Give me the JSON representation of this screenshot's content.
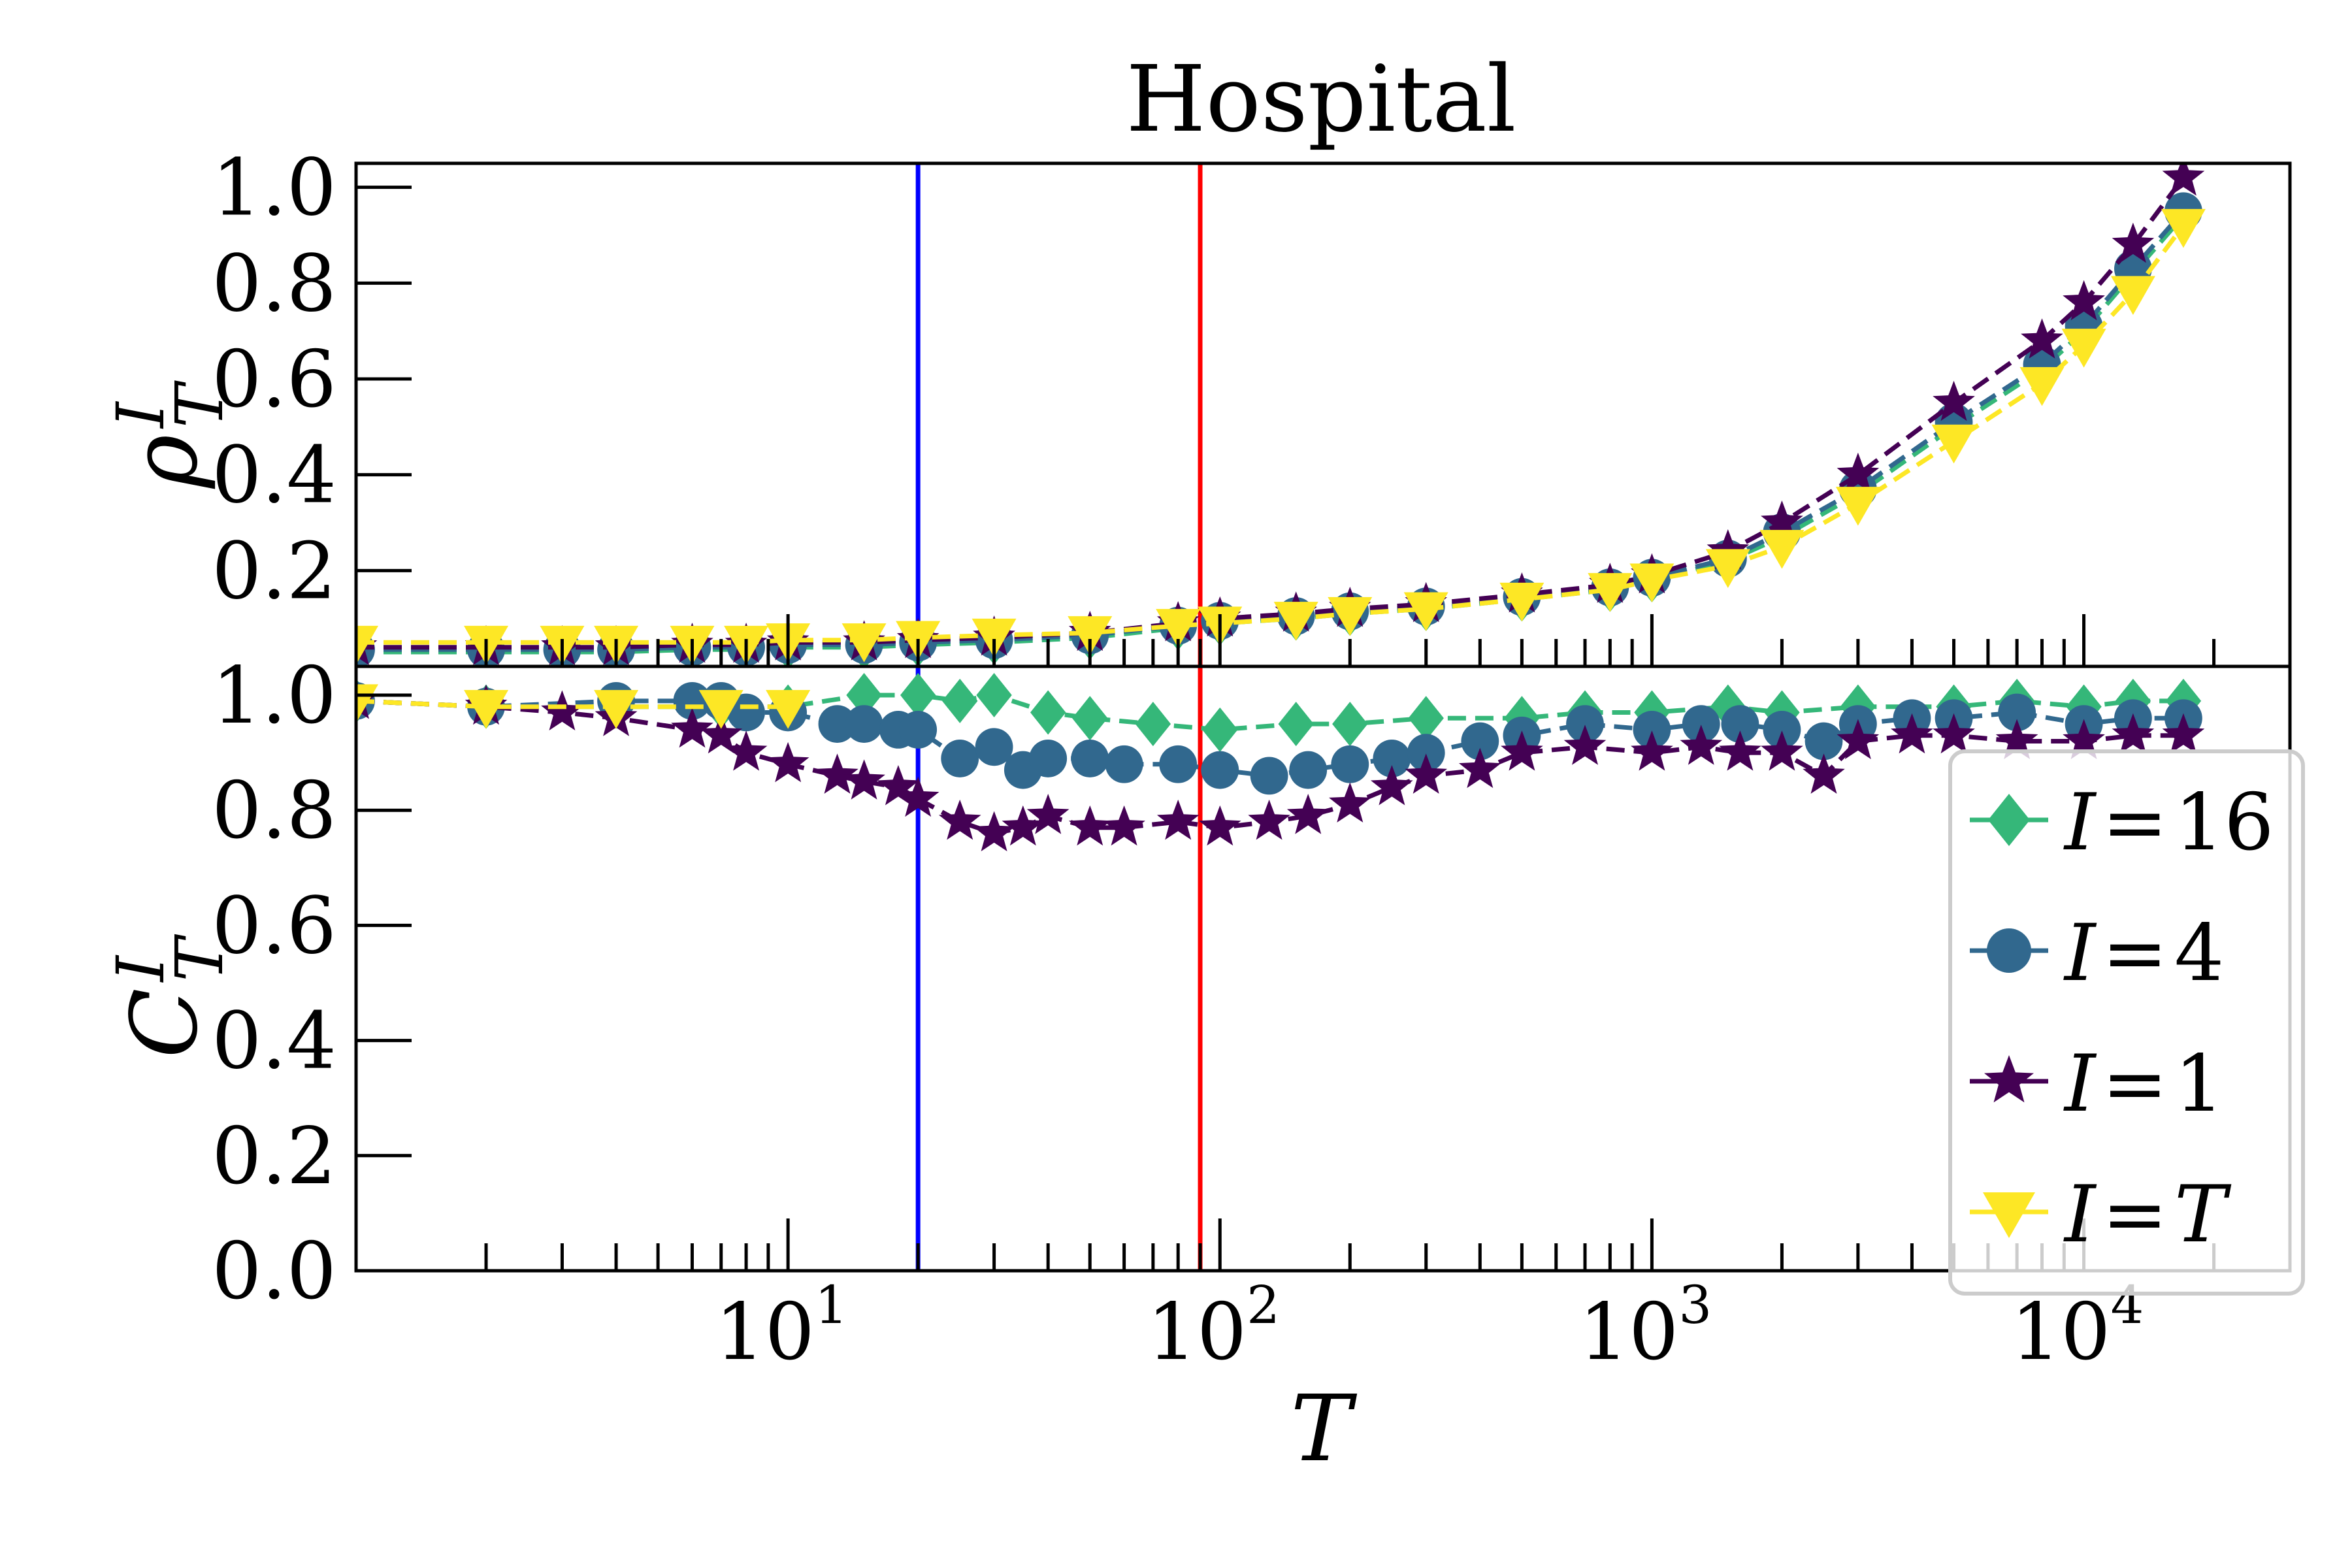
{
  "chart_data": {
    "type": "line",
    "title": "Hospital",
    "x": {
      "label": "T",
      "scale": "log",
      "range": [
        1,
        30000
      ],
      "major_ticks": [
        10,
        100,
        1000,
        10000
      ],
      "major_tick_labels": [
        [
          "10",
          "1"
        ],
        [
          "10",
          "2"
        ],
        [
          "10",
          "3"
        ],
        [
          "10",
          "4"
        ]
      ],
      "minor_ticks": true
    },
    "vertical_lines": [
      {
        "x": 20,
        "color": "#0000ff"
      },
      {
        "x": 90,
        "color": "#ff0000"
      }
    ],
    "panels": [
      {
        "id": "top",
        "ylabel": {
          "base": "ρ",
          "sup": "I",
          "sub": "T"
        },
        "ylim": [
          0.0,
          1.05
        ],
        "yticks": [
          0.2,
          0.4,
          0.6,
          0.8,
          1.0
        ],
        "ytick_labels": [
          "0.2",
          "0.4",
          "0.6",
          "0.8",
          "1.0"
        ],
        "series": [
          {
            "name": "I = 16",
            "marker": "diamond",
            "color": "#35b779",
            "x": [
              1,
              2,
              3,
              4,
              6,
              8,
              10,
              15,
              20,
              30,
              50,
              80,
              100,
              150,
              200,
              300,
              500,
              800,
              1000,
              1500,
              2000,
              3000,
              5000,
              8000,
              10000,
              13000,
              17000
            ],
            "y": [
              0.03,
              0.03,
              0.03,
              0.03,
              0.035,
              0.035,
              0.04,
              0.04,
              0.045,
              0.05,
              0.06,
              0.08,
              0.09,
              0.1,
              0.11,
              0.12,
              0.14,
              0.16,
              0.18,
              0.22,
              0.27,
              0.36,
              0.5,
              0.62,
              0.7,
              0.82,
              0.94
            ]
          },
          {
            "name": "I = 4",
            "marker": "circle",
            "color": "#31688e",
            "x": [
              1,
              2,
              3,
              4,
              6,
              8,
              10,
              15,
              20,
              30,
              50,
              80,
              100,
              150,
              200,
              300,
              500,
              800,
              1000,
              1500,
              2000,
              3000,
              5000,
              8000,
              10000,
              13000,
              17000
            ],
            "y": [
              0.035,
              0.035,
              0.035,
              0.035,
              0.04,
              0.04,
              0.045,
              0.045,
              0.05,
              0.055,
              0.065,
              0.085,
              0.095,
              0.105,
              0.115,
              0.125,
              0.145,
              0.165,
              0.185,
              0.225,
              0.28,
              0.37,
              0.51,
              0.63,
              0.71,
              0.83,
              0.95
            ]
          },
          {
            "name": "I = 1",
            "marker": "star",
            "color": "#440154",
            "x": [
              1,
              2,
              3,
              4,
              6,
              8,
              10,
              15,
              20,
              30,
              50,
              80,
              100,
              150,
              200,
              300,
              500,
              800,
              1000,
              1500,
              2000,
              3000,
              5000,
              8000,
              10000,
              13000,
              17000
            ],
            "y": [
              0.04,
              0.04,
              0.04,
              0.04,
              0.045,
              0.045,
              0.05,
              0.05,
              0.055,
              0.06,
              0.07,
              0.09,
              0.1,
              0.11,
              0.12,
              0.13,
              0.15,
              0.17,
              0.19,
              0.24,
              0.3,
              0.4,
              0.55,
              0.68,
              0.76,
              0.88,
              1.02
            ]
          },
          {
            "name": "I = T",
            "marker": "triangle-down",
            "color": "#fde725",
            "x": [
              1,
              2,
              3,
              4,
              6,
              8,
              10,
              15,
              20,
              30,
              50,
              80,
              100,
              150,
              200,
              300,
              500,
              800,
              1000,
              1500,
              2000,
              3000,
              5000,
              8000,
              10000,
              13000,
              17000
            ],
            "y": [
              0.05,
              0.05,
              0.05,
              0.05,
              0.05,
              0.05,
              0.055,
              0.055,
              0.06,
              0.065,
              0.07,
              0.085,
              0.09,
              0.1,
              0.11,
              0.12,
              0.14,
              0.16,
              0.18,
              0.21,
              0.25,
              0.34,
              0.47,
              0.59,
              0.67,
              0.78,
              0.92
            ]
          }
        ]
      },
      {
        "id": "bottom",
        "ylabel": {
          "base": "C",
          "sup": "I",
          "sub": "T"
        },
        "ylim": [
          0.0,
          1.05
        ],
        "yticks": [
          0.0,
          0.2,
          0.4,
          0.6,
          0.8,
          1.0
        ],
        "ytick_labels": [
          "0.0",
          "0.2",
          "0.4",
          "0.6",
          "0.8",
          "1.0"
        ],
        "series": [
          {
            "name": "I = 16",
            "marker": "diamond",
            "color": "#35b779",
            "x": [
              1,
              2,
              4,
              7,
              10,
              15,
              20,
              25,
              30,
              40,
              50,
              70,
              100,
              150,
              200,
              300,
              500,
              700,
              1000,
              1500,
              2000,
              3000,
              5000,
              7000,
              10000,
              13000,
              17000
            ],
            "y": [
              0.99,
              0.98,
              0.98,
              0.98,
              0.98,
              1.0,
              1.0,
              0.99,
              1.0,
              0.97,
              0.96,
              0.95,
              0.94,
              0.95,
              0.95,
              0.96,
              0.96,
              0.97,
              0.97,
              0.98,
              0.97,
              0.98,
              0.98,
              0.99,
              0.98,
              0.99,
              0.99
            ]
          },
          {
            "name": "I = 4",
            "marker": "circle",
            "color": "#31688e",
            "x": [
              1,
              2,
              4,
              6,
              7,
              8,
              10,
              13,
              15,
              18,
              20,
              25,
              30,
              35,
              40,
              50,
              60,
              80,
              100,
              130,
              160,
              200,
              250,
              300,
              400,
              500,
              700,
              1000,
              1300,
              1600,
              2000,
              2500,
              3000,
              4000,
              5000,
              7000,
              10000,
              13000,
              17000
            ],
            "y": [
              0.99,
              0.98,
              0.99,
              0.99,
              0.99,
              0.97,
              0.97,
              0.95,
              0.95,
              0.94,
              0.94,
              0.89,
              0.91,
              0.87,
              0.89,
              0.89,
              0.88,
              0.88,
              0.87,
              0.86,
              0.87,
              0.88,
              0.89,
              0.9,
              0.92,
              0.93,
              0.95,
              0.94,
              0.95,
              0.95,
              0.94,
              0.92,
              0.95,
              0.96,
              0.96,
              0.97,
              0.95,
              0.96,
              0.96
            ]
          },
          {
            "name": "I = 1",
            "marker": "star",
            "color": "#440154",
            "x": [
              1,
              2,
              3,
              4,
              6,
              7,
              8,
              10,
              13,
              15,
              18,
              20,
              25,
              30,
              35,
              40,
              50,
              60,
              80,
              100,
              130,
              160,
              200,
              250,
              300,
              400,
              500,
              700,
              1000,
              1300,
              1600,
              2000,
              2500,
              3000,
              4000,
              5000,
              7000,
              10000,
              13000,
              17000
            ],
            "y": [
              0.99,
              0.98,
              0.97,
              0.96,
              0.94,
              0.93,
              0.9,
              0.88,
              0.86,
              0.85,
              0.84,
              0.82,
              0.78,
              0.76,
              0.77,
              0.79,
              0.77,
              0.77,
              0.78,
              0.77,
              0.78,
              0.79,
              0.81,
              0.84,
              0.86,
              0.87,
              0.9,
              0.91,
              0.9,
              0.91,
              0.9,
              0.9,
              0.86,
              0.92,
              0.93,
              0.93,
              0.92,
              0.92,
              0.93,
              0.93
            ]
          },
          {
            "name": "I = T",
            "marker": "triangle-down",
            "color": "#fde725",
            "x": [
              1,
              2,
              4,
              7,
              10
            ],
            "y": [
              0.99,
              0.98,
              0.98,
              0.98,
              0.98
            ]
          }
        ]
      }
    ],
    "legend": {
      "placement": "lower-right",
      "entries": [
        {
          "math": "I",
          "op": "=",
          "value": "16",
          "value_italic": false,
          "marker": "diamond",
          "color": "#35b779"
        },
        {
          "math": "I",
          "op": "=",
          "value": "4",
          "value_italic": false,
          "marker": "circle",
          "color": "#31688e"
        },
        {
          "math": "I",
          "op": "=",
          "value": "1",
          "value_italic": false,
          "marker": "star",
          "color": "#440154"
        },
        {
          "math": "I",
          "op": "=",
          "value": "T",
          "value_italic": true,
          "marker": "triangle-down",
          "color": "#fde725"
        }
      ]
    }
  }
}
